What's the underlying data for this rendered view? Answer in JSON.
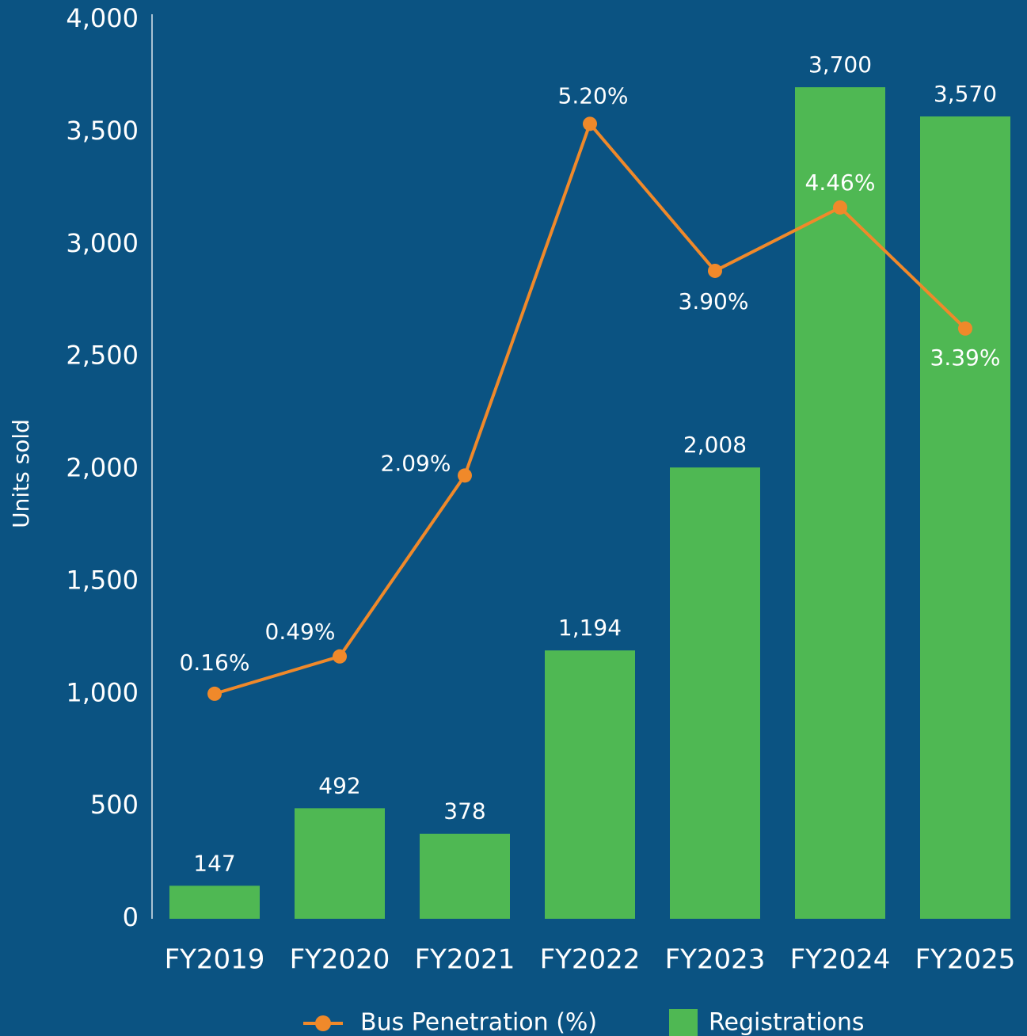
{
  "chart_data": {
    "type": "bar",
    "y_axis_label": "Units sold",
    "categories": [
      "FY2019",
      "FY2020",
      "FY2021",
      "FY2022",
      "FY2023",
      "FY2024",
      "FY2025"
    ],
    "ylim": [
      0,
      4000
    ],
    "yticks": [
      0,
      500,
      {
        "value": 1000,
        "label": "1,000"
      },
      {
        "value": 1500,
        "label": "1,500"
      },
      {
        "value": 2000,
        "label": "2,000"
      },
      {
        "value": 2500,
        "label": "2,500"
      },
      {
        "value": 3000,
        "label": "3,000"
      },
      {
        "value": 3500,
        "label": "3,500"
      },
      {
        "value": 4000,
        "label": "4,000"
      }
    ],
    "y2lim": [
      -1.83,
      6.12
    ],
    "legend": "bottom",
    "series": [
      {
        "name": "Registrations",
        "type": "bar",
        "color": "#4fb853",
        "values": [
          147,
          492,
          378,
          1194,
          2008,
          3700,
          3570
        ],
        "value_labels": [
          "147",
          "492",
          "378",
          "1,194",
          "2,008",
          "3,700",
          "3,570"
        ]
      },
      {
        "name": "Bus Penetration (%)",
        "type": "line",
        "axis": "y2",
        "color": "#f0892a",
        "values": [
          0.16,
          0.49,
          2.09,
          5.2,
          3.9,
          4.46,
          3.39
        ],
        "value_labels": [
          "0.16%",
          "0.49%",
          "2.09%",
          "5.20%",
          "3.90%",
          "4.46%",
          "3.39%"
        ]
      }
    ]
  }
}
